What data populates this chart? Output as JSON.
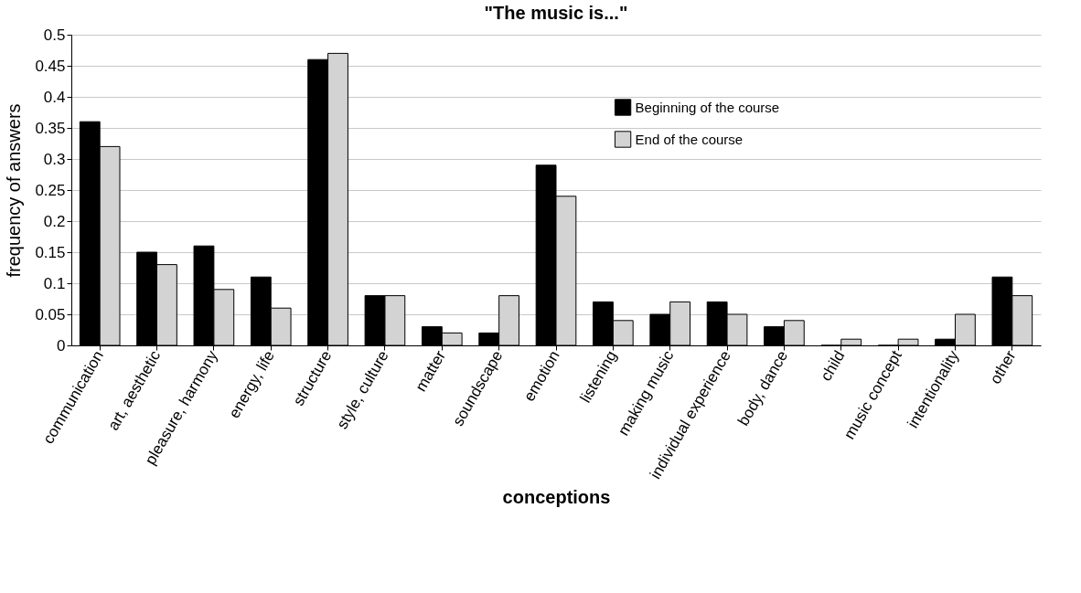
{
  "chart_data": {
    "type": "bar",
    "title": "\"The music is...\"",
    "xlabel": "conceptions",
    "ylabel": "frequency of answers",
    "categories": [
      "communication",
      "art, aesthetic",
      "pleasure, harmony",
      "energy, life",
      "structure",
      "style, culture",
      "matter",
      "soundscape",
      "emotion",
      "listening",
      "making music",
      "individual experience",
      "body, dance",
      "child",
      "music concept",
      "intentionality",
      "other"
    ],
    "series": [
      {
        "name": "Beginning of the course",
        "color": "#000000",
        "values": [
          0.36,
          0.15,
          0.16,
          0.11,
          0.46,
          0.08,
          0.03,
          0.02,
          0.29,
          0.07,
          0.05,
          0.07,
          0.03,
          0,
          0,
          0.01,
          0.11
        ]
      },
      {
        "name": "End of the course",
        "color": "#d3d3d3",
        "values": [
          0.32,
          0.13,
          0.09,
          0.06,
          0.47,
          0.08,
          0.02,
          0.08,
          0.24,
          0.04,
          0.07,
          0.05,
          0.04,
          0.01,
          0.01,
          0.05,
          0.08
        ]
      }
    ],
    "ylim": [
      0,
      0.5
    ],
    "yticks": [
      0,
      0.05,
      0.1,
      0.15,
      0.2,
      0.25,
      0.3,
      0.35,
      0.4,
      0.45,
      0.5
    ],
    "grid": "y",
    "legend": "top right"
  }
}
